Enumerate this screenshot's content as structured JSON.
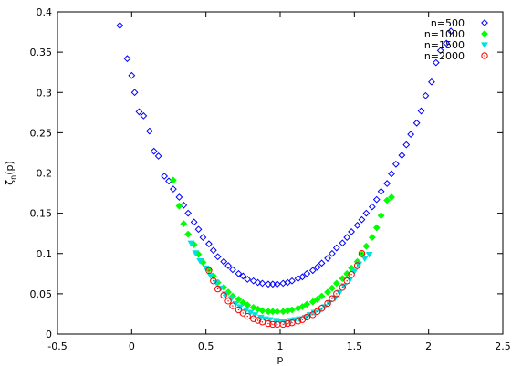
{
  "chart_data": {
    "type": "scatter",
    "title": "",
    "xlabel": "p",
    "ylabel": "ζ_n(p)",
    "xlim": [
      -0.5,
      2.5
    ],
    "ylim": [
      0,
      0.4
    ],
    "xticks": [
      "-0.5",
      "0",
      "0.5",
      "1",
      "1.5",
      "2",
      "2.5"
    ],
    "yticks": [
      "0",
      "0.05",
      "0.1",
      "0.15",
      "0.2",
      "0.25",
      "0.3",
      "0.35",
      "0.4"
    ],
    "legend_position": "top-right",
    "grid": false,
    "series": [
      {
        "name": "n=500",
        "color": "#0000ff",
        "marker": "diamond-open",
        "x": [
          -0.08,
          -0.03,
          0.0,
          0.02,
          0.05,
          0.08,
          0.12,
          0.15,
          0.18,
          0.22,
          0.25,
          0.28,
          0.32,
          0.35,
          0.38,
          0.42,
          0.45,
          0.48,
          0.52,
          0.55,
          0.58,
          0.62,
          0.65,
          0.68,
          0.72,
          0.75,
          0.78,
          0.82,
          0.85,
          0.88,
          0.92,
          0.95,
          0.98,
          1.02,
          1.05,
          1.08,
          1.12,
          1.15,
          1.18,
          1.22,
          1.25,
          1.28,
          1.32,
          1.35,
          1.38,
          1.42,
          1.45,
          1.48,
          1.52,
          1.55,
          1.58,
          1.62,
          1.65,
          1.68,
          1.72,
          1.75,
          1.78,
          1.82,
          1.85,
          1.88,
          1.92,
          1.95,
          1.98,
          2.02,
          2.05,
          2.08,
          2.12,
          2.15
        ],
        "y": [
          0.383,
          0.342,
          0.321,
          0.3,
          0.276,
          0.271,
          0.252,
          0.227,
          0.221,
          0.196,
          0.19,
          0.18,
          0.17,
          0.16,
          0.15,
          0.139,
          0.13,
          0.12,
          0.112,
          0.104,
          0.096,
          0.09,
          0.085,
          0.08,
          0.075,
          0.072,
          0.068,
          0.066,
          0.064,
          0.063,
          0.062,
          0.062,
          0.062,
          0.063,
          0.064,
          0.066,
          0.069,
          0.071,
          0.075,
          0.079,
          0.083,
          0.088,
          0.094,
          0.1,
          0.107,
          0.113,
          0.12,
          0.127,
          0.135,
          0.142,
          0.15,
          0.158,
          0.167,
          0.177,
          0.187,
          0.199,
          0.211,
          0.222,
          0.235,
          0.248,
          0.262,
          0.277,
          0.296,
          0.313,
          0.337,
          0.352,
          0.361,
          0.376
        ]
      },
      {
        "name": "n=1000",
        "color": "#00ff00",
        "marker": "diamond-filled",
        "x": [
          0.28,
          0.32,
          0.35,
          0.38,
          0.42,
          0.45,
          0.48,
          0.52,
          0.55,
          0.58,
          0.62,
          0.65,
          0.68,
          0.72,
          0.75,
          0.78,
          0.82,
          0.85,
          0.88,
          0.92,
          0.95,
          0.98,
          1.02,
          1.05,
          1.08,
          1.12,
          1.15,
          1.18,
          1.22,
          1.25,
          1.28,
          1.32,
          1.35,
          1.38,
          1.42,
          1.45,
          1.48,
          1.52,
          1.55,
          1.58,
          1.62,
          1.65,
          1.68,
          1.72,
          1.75
        ],
        "y": [
          0.191,
          0.159,
          0.137,
          0.124,
          0.111,
          0.099,
          0.089,
          0.08,
          0.072,
          0.064,
          0.058,
          0.052,
          0.047,
          0.043,
          0.039,
          0.036,
          0.033,
          0.031,
          0.029,
          0.028,
          0.028,
          0.028,
          0.028,
          0.029,
          0.03,
          0.032,
          0.034,
          0.037,
          0.04,
          0.043,
          0.047,
          0.052,
          0.057,
          0.063,
          0.069,
          0.075,
          0.082,
          0.09,
          0.099,
          0.109,
          0.12,
          0.132,
          0.147,
          0.166,
          0.17
        ]
      },
      {
        "name": "n=1500",
        "color": "#00e0e0",
        "marker": "triangle-down-filled",
        "x": [
          0.4,
          0.43,
          0.46,
          0.5,
          0.53,
          0.57,
          0.6,
          0.63,
          0.67,
          0.7,
          0.73,
          0.77,
          0.8,
          0.83,
          0.87,
          0.9,
          0.93,
          0.97,
          1.0,
          1.03,
          1.07,
          1.1,
          1.13,
          1.17,
          1.2,
          1.23,
          1.27,
          1.3,
          1.33,
          1.37,
          1.4,
          1.43,
          1.47,
          1.5,
          1.53,
          1.57,
          1.6
        ],
        "y": [
          0.113,
          0.101,
          0.091,
          0.082,
          0.073,
          0.064,
          0.057,
          0.05,
          0.044,
          0.038,
          0.034,
          0.03,
          0.027,
          0.024,
          0.021,
          0.019,
          0.018,
          0.017,
          0.016,
          0.016,
          0.017,
          0.018,
          0.019,
          0.021,
          0.024,
          0.027,
          0.03,
          0.034,
          0.039,
          0.045,
          0.052,
          0.06,
          0.068,
          0.078,
          0.087,
          0.094,
          0.099
        ]
      },
      {
        "name": "n=2000",
        "color": "#ff0000",
        "marker": "circle-open",
        "x": [
          0.52,
          0.55,
          0.58,
          0.62,
          0.65,
          0.68,
          0.72,
          0.75,
          0.78,
          0.82,
          0.85,
          0.88,
          0.92,
          0.95,
          0.98,
          1.02,
          1.05,
          1.08,
          1.12,
          1.15,
          1.18,
          1.22,
          1.25,
          1.28,
          1.32,
          1.35,
          1.38,
          1.42,
          1.45,
          1.48,
          1.52,
          1.55
        ],
        "y": [
          0.079,
          0.066,
          0.056,
          0.048,
          0.041,
          0.035,
          0.03,
          0.026,
          0.022,
          0.019,
          0.017,
          0.015,
          0.013,
          0.012,
          0.012,
          0.012,
          0.013,
          0.014,
          0.016,
          0.018,
          0.021,
          0.024,
          0.028,
          0.032,
          0.038,
          0.044,
          0.05,
          0.058,
          0.066,
          0.074,
          0.085,
          0.1
        ]
      }
    ]
  }
}
